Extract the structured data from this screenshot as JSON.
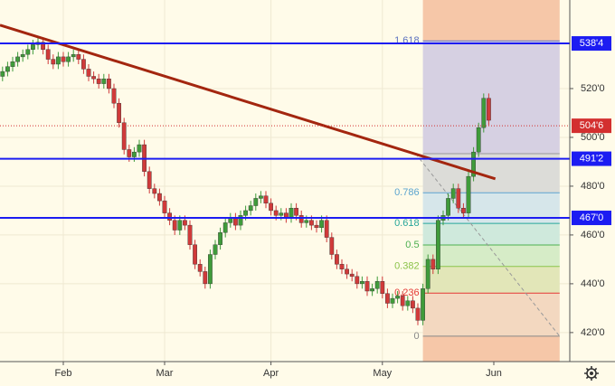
{
  "chart_data": {
    "type": "candlestick",
    "xlim": [
      -0.5,
      112
    ],
    "ylim": [
      408.1,
      556.3
    ],
    "xticks": [
      {
        "value": 12,
        "label": "Feb"
      },
      {
        "value": 32,
        "label": "Mar"
      },
      {
        "value": 53,
        "label": "Apr"
      },
      {
        "value": 75,
        "label": "May"
      },
      {
        "value": 97,
        "label": "Jun"
      }
    ],
    "yticks": [
      {
        "value": 420,
        "label": "420'0"
      },
      {
        "value": 440,
        "label": "440'0"
      },
      {
        "value": 460,
        "label": "460'0"
      },
      {
        "value": 480,
        "label": "480'0"
      },
      {
        "value": 500,
        "label": "500'0"
      },
      {
        "value": 520,
        "label": "520'0"
      }
    ],
    "grid": true,
    "up_color": "#3f9b3a",
    "down_color": "#d03a3a",
    "x": [
      0,
      1,
      2,
      3,
      4,
      5,
      6,
      7,
      8,
      9,
      10,
      11,
      12,
      13,
      14,
      15,
      16,
      17,
      18,
      19,
      20,
      21,
      22,
      23,
      24,
      25,
      26,
      27,
      28,
      29,
      30,
      31,
      32,
      33,
      34,
      35,
      36,
      37,
      38,
      39,
      40,
      41,
      42,
      43,
      44,
      45,
      46,
      47,
      48,
      49,
      50,
      51,
      52,
      53,
      54,
      55,
      56,
      57,
      58,
      59,
      60,
      61,
      62,
      63,
      64,
      65,
      66,
      67,
      68,
      69,
      70,
      71,
      72,
      73,
      74,
      75,
      76,
      77,
      78,
      79,
      80,
      81,
      82,
      83,
      84,
      85,
      86,
      87,
      88,
      89,
      90,
      91,
      92,
      93,
      94,
      95,
      96
    ],
    "open": [
      525,
      527,
      529,
      531,
      533,
      534,
      536,
      538,
      539,
      536,
      532,
      530,
      533,
      531,
      533,
      534,
      532,
      528,
      525,
      524,
      522,
      524,
      520,
      514,
      506,
      495,
      492,
      494,
      497,
      486,
      479,
      477,
      474,
      469,
      466,
      462,
      466,
      464,
      456,
      448,
      445,
      440,
      452,
      456,
      461,
      465,
      467,
      464,
      468,
      470,
      472,
      475,
      476,
      473,
      470,
      468,
      469,
      467,
      471,
      468,
      465,
      466,
      464,
      463,
      466,
      459,
      452,
      448,
      446,
      444,
      443,
      440,
      441,
      437,
      438,
      441,
      436,
      432,
      434,
      435,
      431,
      433,
      430,
      425,
      438,
      450,
      446,
      466,
      468,
      475,
      479,
      471,
      469,
      484,
      494,
      504,
      516
    ],
    "high": [
      529,
      531,
      533,
      535,
      536,
      538,
      540,
      541,
      541,
      538,
      534,
      535,
      535,
      535,
      536,
      536,
      534,
      530,
      527,
      526,
      526,
      526,
      522,
      516,
      508,
      497,
      496,
      499,
      499,
      488,
      481,
      479,
      476,
      471,
      468,
      468,
      468,
      466,
      458,
      450,
      447,
      454,
      458,
      463,
      467,
      469,
      469,
      470,
      472,
      474,
      477,
      478,
      478,
      475,
      472,
      471,
      471,
      473,
      473,
      470,
      468,
      468,
      466,
      468,
      468,
      461,
      454,
      450,
      448,
      446,
      445,
      443,
      443,
      440,
      443,
      443,
      438,
      436,
      437,
      437,
      435,
      435,
      432,
      440,
      452,
      452,
      468,
      470,
      477,
      481,
      481,
      473,
      486,
      496,
      506,
      518,
      518
    ],
    "low": [
      523,
      525,
      527,
      529,
      531,
      532,
      534,
      536,
      534,
      530,
      528,
      528,
      529,
      529,
      531,
      530,
      526,
      523,
      522,
      520,
      520,
      518,
      512,
      504,
      493,
      490,
      490,
      492,
      484,
      477,
      475,
      472,
      467,
      464,
      460,
      460,
      462,
      454,
      446,
      443,
      438,
      438,
      450,
      454,
      459,
      463,
      462,
      462,
      466,
      468,
      470,
      473,
      471,
      468,
      466,
      466,
      465,
      465,
      466,
      463,
      463,
      462,
      461,
      461,
      457,
      450,
      446,
      444,
      442,
      441,
      438,
      438,
      435,
      435,
      436,
      434,
      430,
      430,
      432,
      429,
      429,
      428,
      423,
      423,
      436,
      444,
      444,
      464,
      466,
      473,
      469,
      467,
      467,
      482,
      492,
      502,
      505
    ],
    "close": [
      527,
      529,
      531,
      533,
      534,
      536,
      538,
      539,
      536,
      532,
      530,
      533,
      531,
      533,
      534,
      532,
      528,
      525,
      524,
      522,
      524,
      520,
      514,
      506,
      495,
      492,
      494,
      497,
      486,
      479,
      477,
      474,
      469,
      466,
      462,
      466,
      464,
      456,
      448,
      445,
      440,
      452,
      456,
      461,
      465,
      467,
      464,
      468,
      470,
      472,
      475,
      476,
      473,
      470,
      468,
      469,
      467,
      471,
      468,
      465,
      466,
      464,
      463,
      466,
      459,
      452,
      448,
      446,
      444,
      443,
      440,
      441,
      437,
      438,
      441,
      436,
      432,
      434,
      435,
      431,
      433,
      430,
      425,
      438,
      450,
      446,
      466,
      468,
      475,
      479,
      471,
      469,
      484,
      494,
      504,
      516,
      507
    ],
    "price_lines": [
      {
        "value": 538.5,
        "label": "538'4",
        "color": "#1c1cf2"
      },
      {
        "value": 491.25,
        "label": "491'2",
        "color": "#1c1cf2"
      },
      {
        "value": 467,
        "label": "467'0",
        "color": "#1c1cf2"
      }
    ],
    "last_price": {
      "value": 504.75,
      "label": "504'6",
      "color": "#d32f2f"
    },
    "trendline": {
      "x": [
        -0.5,
        97.3
      ],
      "y": [
        546,
        483
      ],
      "color": "#a3260f"
    },
    "fib": {
      "x_start": 83,
      "x_end": 110,
      "low": 418.5,
      "high": 493.3,
      "levels": [
        0,
        0.236,
        0.382,
        0.5,
        0.618,
        0.786,
        1.618
      ],
      "colors": [
        "#888888",
        "#e53935",
        "#8bc34a",
        "#4caf50",
        "#26a69a",
        "#5ba4cf",
        "#5a6fbf"
      ]
    }
  }
}
